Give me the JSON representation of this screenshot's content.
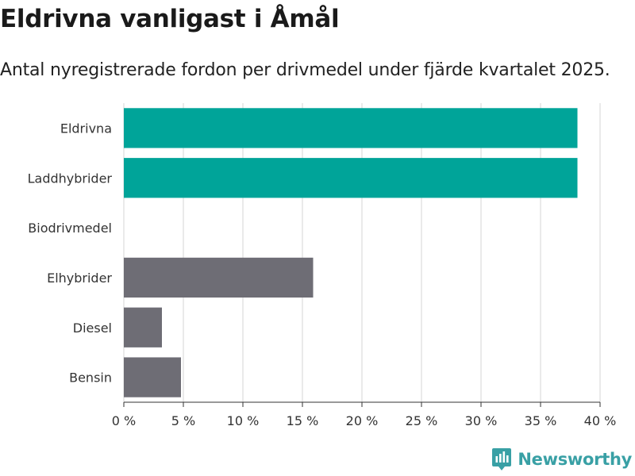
{
  "header": {
    "title": "Eldrivna vanligast i Åmål",
    "subtitle": "Antal nyregistrerade fordon per drivmedel under fjärde kvartalet 2025."
  },
  "chart_data": {
    "type": "bar",
    "orientation": "horizontal",
    "categories": [
      "Eldrivna",
      "Laddhybrider",
      "Biodrivmedel",
      "Elhybrider",
      "Diesel",
      "Bensin"
    ],
    "values": [
      38.1,
      38.1,
      0,
      15.9,
      3.2,
      4.8
    ],
    "colors": [
      "#00a499",
      "#00a499",
      "#6e6d75",
      "#6e6d75",
      "#6e6d75",
      "#6e6d75"
    ],
    "xlim": [
      0,
      40
    ],
    "xticks": [
      0,
      5,
      10,
      15,
      20,
      25,
      30,
      35,
      40
    ],
    "xtick_labels": [
      "0 %",
      "5 %",
      "10 %",
      "15 %",
      "20 %",
      "25 %",
      "30 %",
      "35 %",
      "40 %"
    ],
    "grid": true,
    "xlabel": "",
    "ylabel": ""
  },
  "branding": {
    "name": "Newsworthy",
    "icon": "bar-chart-badge-icon",
    "color": "#39a0a5"
  },
  "style": {
    "grid_color": "#dddddd",
    "axis_color": "#333333"
  }
}
